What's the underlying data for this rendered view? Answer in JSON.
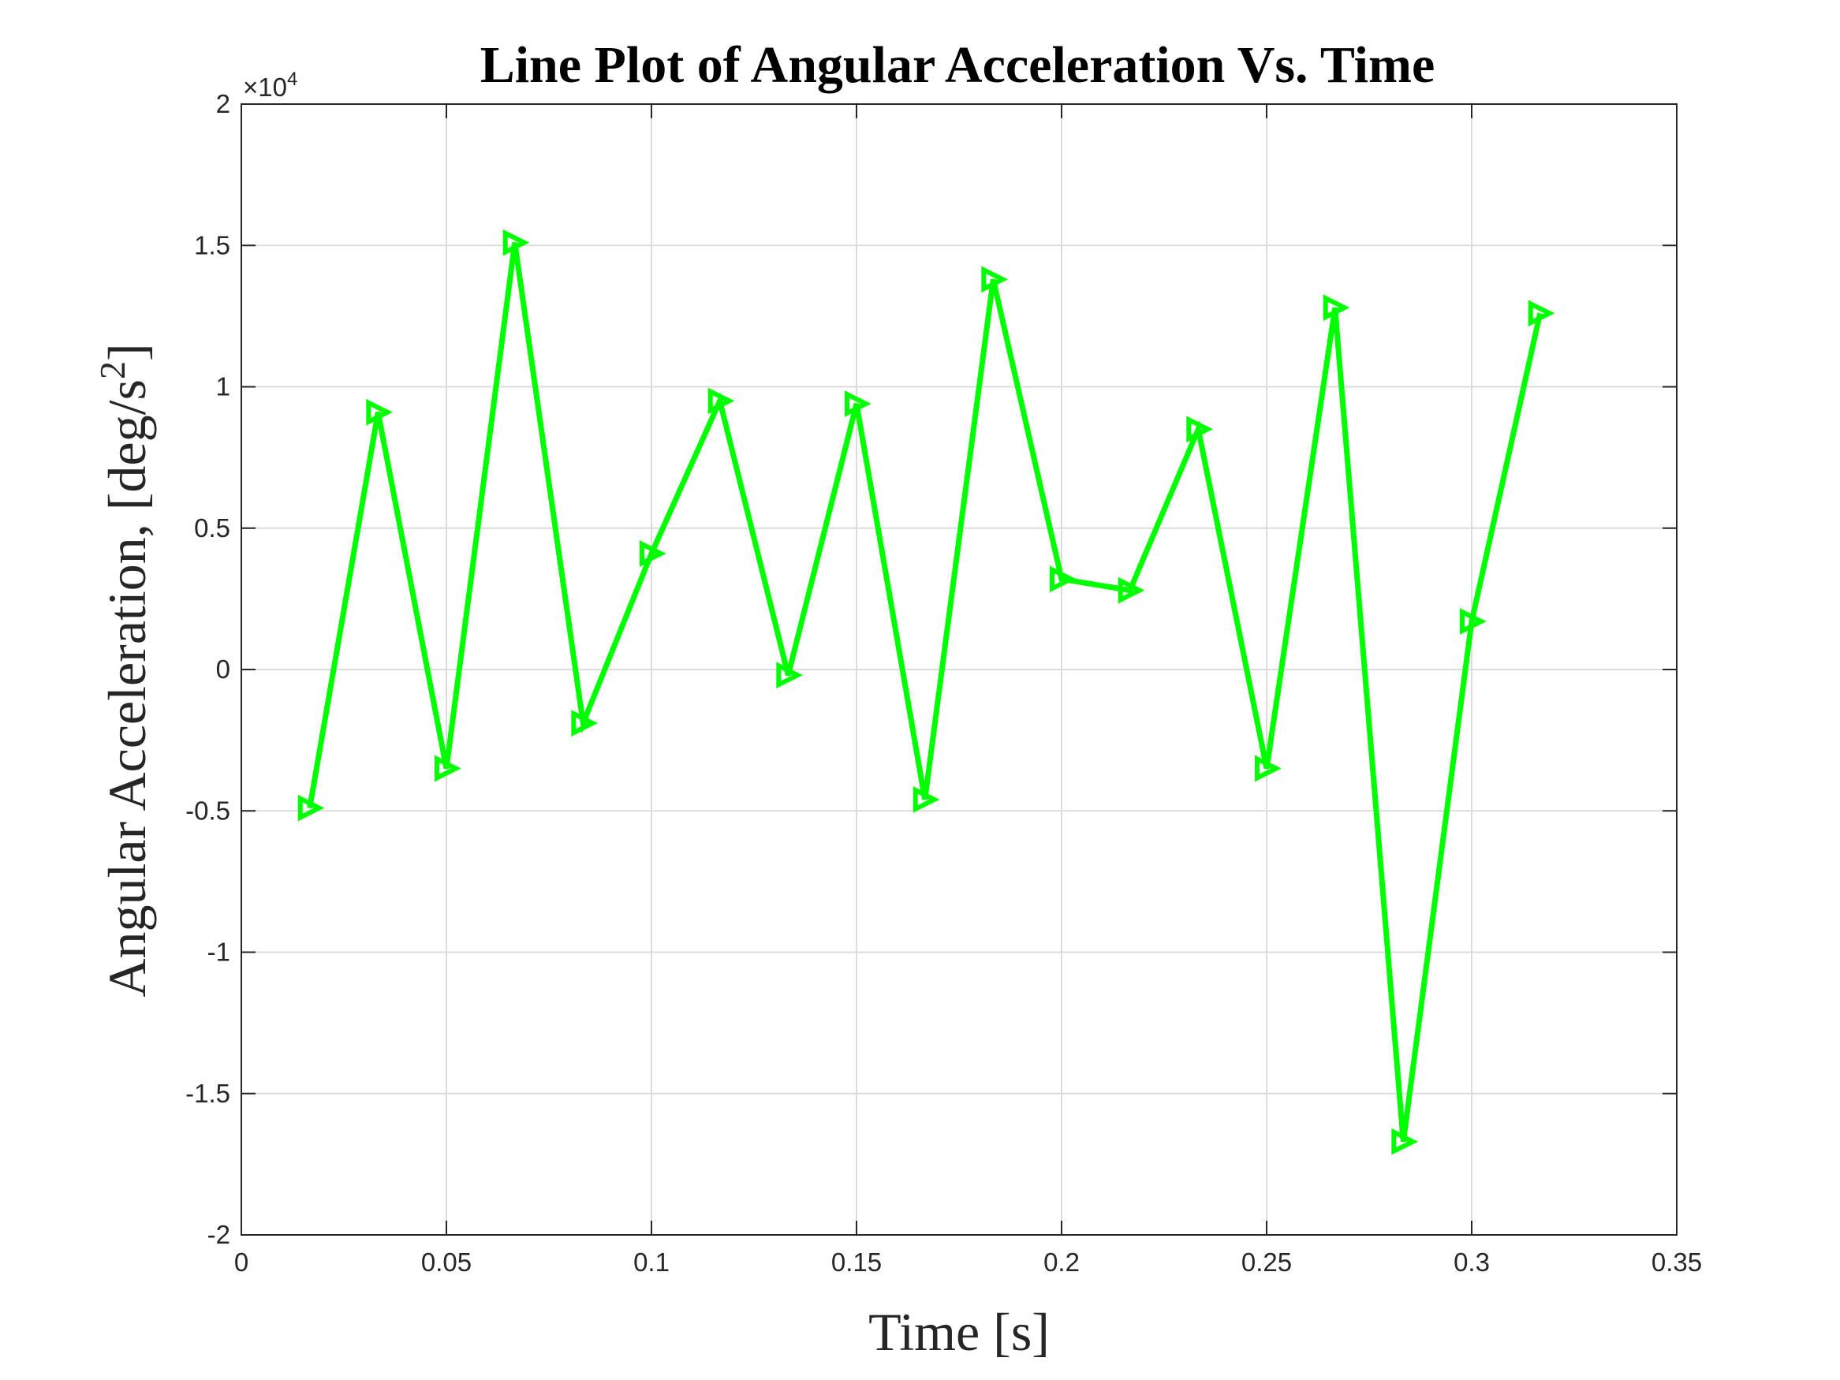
{
  "chart_data": {
    "type": "line",
    "title": "Line Plot of Angular Acceleration Vs. Time",
    "xlabel": "Time [s]",
    "ylabel": "Angular Acceleration, [deg/s",
    "ylabel_superscript": "2",
    "ylabel_suffix": "]",
    "y_multiplier_label": "×10",
    "y_multiplier_exponent": "4",
    "xlim": [
      0,
      0.35
    ],
    "ylim": [
      -20000,
      20000
    ],
    "x_ticks": [
      0,
      0.05,
      0.1,
      0.15,
      0.2,
      0.25,
      0.3,
      0.35
    ],
    "x_tick_labels": [
      "0",
      "0.05",
      "0.1",
      "0.15",
      "0.2",
      "0.25",
      "0.3",
      "0.35"
    ],
    "y_ticks": [
      -20000,
      -15000,
      -10000,
      -5000,
      0,
      5000,
      10000,
      15000,
      20000
    ],
    "y_tick_labels": [
      "-2",
      "-1.5",
      "-1",
      "-0.5",
      "0",
      "0.5",
      "1",
      "1.5",
      "2"
    ],
    "grid": true,
    "series": [
      {
        "marker": "triangle-right",
        "color": "#00ff00",
        "x": [
          0.01667,
          0.03333,
          0.05,
          0.06667,
          0.08333,
          0.1,
          0.11667,
          0.13333,
          0.15,
          0.16667,
          0.18333,
          0.2,
          0.21667,
          0.23333,
          0.25,
          0.26667,
          0.28333,
          0.3,
          0.31667
        ],
        "y": [
          -4900,
          9100,
          -3500,
          15100,
          -1900,
          4100,
          9500,
          -200,
          9400,
          -4600,
          13800,
          3200,
          2800,
          8500,
          -3500,
          12800,
          -16700,
          1700,
          12600
        ]
      }
    ]
  }
}
